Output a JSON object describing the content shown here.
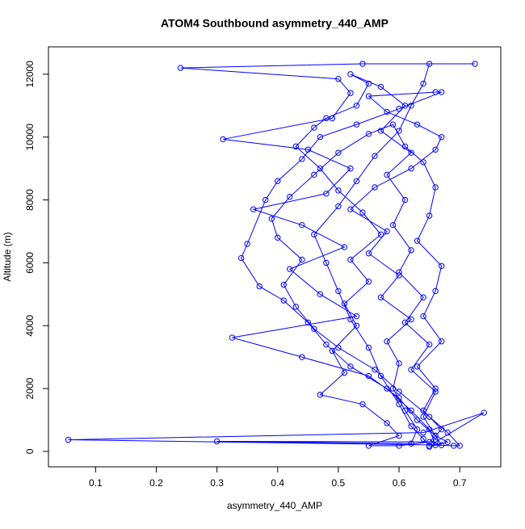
{
  "chart_data": {
    "type": "line",
    "title": "ATOM4 Southbound asymmetry_440_AMP",
    "x_label": "asymmetry_440_AMP",
    "y_label": "Altitude (m)",
    "color": "#0000ff",
    "markers": "open-circle",
    "x": [
      0.65,
      0.64,
      0.62,
      0.6,
      0.57,
      0.55,
      0.52,
      0.5,
      0.48,
      0.46,
      0.5,
      0.53,
      0.56,
      0.6,
      0.62,
      0.64,
      0.65,
      0.725,
      0.54,
      0.24,
      0.5,
      0.52,
      0.49,
      0.31,
      0.45,
      0.52,
      0.48,
      0.36,
      0.44,
      0.51,
      0.42,
      0.47,
      0.53,
      0.325,
      0.44,
      0.55,
      0.6,
      0.63,
      0.66,
      0.67,
      0.055,
      0.64,
      0.74,
      0.66,
      0.3,
      0.62,
      0.63,
      0.61,
      0.59,
      0.6,
      0.58,
      0.62,
      0.57,
      0.6,
      0.55,
      0.58,
      0.52,
      0.56,
      0.62,
      0.66,
      0.67,
      0.63,
      0.58,
      0.55,
      0.66,
      0.67,
      0.6,
      0.53,
      0.47,
      0.44,
      0.4,
      0.38,
      0.35,
      0.34,
      0.37,
      0.41,
      0.45,
      0.48,
      0.52,
      0.58,
      0.62,
      0.65,
      0.66,
      0.69,
      0.7,
      0.68,
      0.65,
      0.6,
      0.56,
      0.5,
      0.46,
      0.43,
      0.41,
      0.44,
      0.4,
      0.39,
      0.42,
      0.46,
      0.5,
      0.55,
      0.59,
      0.61,
      0.64,
      0.66,
      0.65,
      0.63,
      0.67,
      0.66,
      0.64,
      0.67,
      0.63,
      0.66,
      0.64,
      0.67,
      0.65,
      0.6,
      0.55,
      0.6,
      0.58,
      0.54,
      0.47,
      0.51,
      0.49,
      0.53,
      0.51,
      0.55,
      0.52,
      0.57,
      0.54,
      0.5,
      0.47,
      0.43,
      0.46,
      0.48,
      0.53,
      0.55,
      0.52,
      0.57,
      0.61,
      0.57,
      0.62,
      0.58,
      0.61,
      0.59,
      0.62,
      0.6,
      0.64,
      0.61,
      0.65,
      0.62,
      0.66,
      0.64,
      0.66,
      0.68,
      0.65
    ],
    "values": [
      180,
      400,
      800,
      1500,
      2400,
      3300,
      4200,
      5100,
      6000,
      6900,
      7800,
      8600,
      9400,
      10200,
      11000,
      11700,
      12330,
      12330,
      12330,
      12200,
      11850,
      11400,
      10600,
      9930,
      9600,
      9000,
      8200,
      7700,
      7200,
      6500,
      5800,
      5000,
      4300,
      3620,
      3000,
      2400,
      1700,
      1000,
      500,
      200,
      370,
      600,
      1230,
      300,
      320,
      250,
      700,
      1300,
      2000,
      2800,
      3500,
      4200,
      4900,
      5600,
      6300,
      7000,
      7700,
      8400,
      9000,
      9600,
      10000,
      10400,
      10800,
      11300,
      11430,
      11430,
      10900,
      10400,
      10000,
      9300,
      8600,
      8000,
      6600,
      6150,
      5250,
      4800,
      4100,
      3400,
      2700,
      2000,
      1300,
      700,
      200,
      180,
      180,
      600,
      1100,
      1900,
      2600,
      3300,
      3900,
      4600,
      5300,
      6100,
      6800,
      7400,
      8100,
      8800,
      9500,
      10100,
      10400,
      9700,
      9200,
      8400,
      7500,
      6700,
      5900,
      5100,
      4300,
      3500,
      2700,
      2000,
      1300,
      700,
      300,
      180,
      180,
      500,
      900,
      1500,
      1800,
      2500,
      3200,
      4000,
      4700,
      5400,
      6100,
      6900,
      7600,
      8300,
      9000,
      9700,
      10300,
      10600,
      11000,
      11700,
      12000,
      11600,
      11000,
      10200,
      9500,
      8800,
      8000,
      7200,
      6400,
      5700,
      4900,
      4100,
      3400,
      2600,
      1900,
      1100,
      500,
      300,
      150
    ],
    "xlim": [
      0.0224,
      0.7676
    ],
    "ylim": [
      -490,
      12870
    ],
    "xticks": [
      0.1,
      0.2,
      0.3,
      0.4,
      0.5,
      0.6,
      0.7
    ],
    "yticks": [
      0,
      2000,
      4000,
      6000,
      8000,
      10000,
      12000
    ]
  }
}
